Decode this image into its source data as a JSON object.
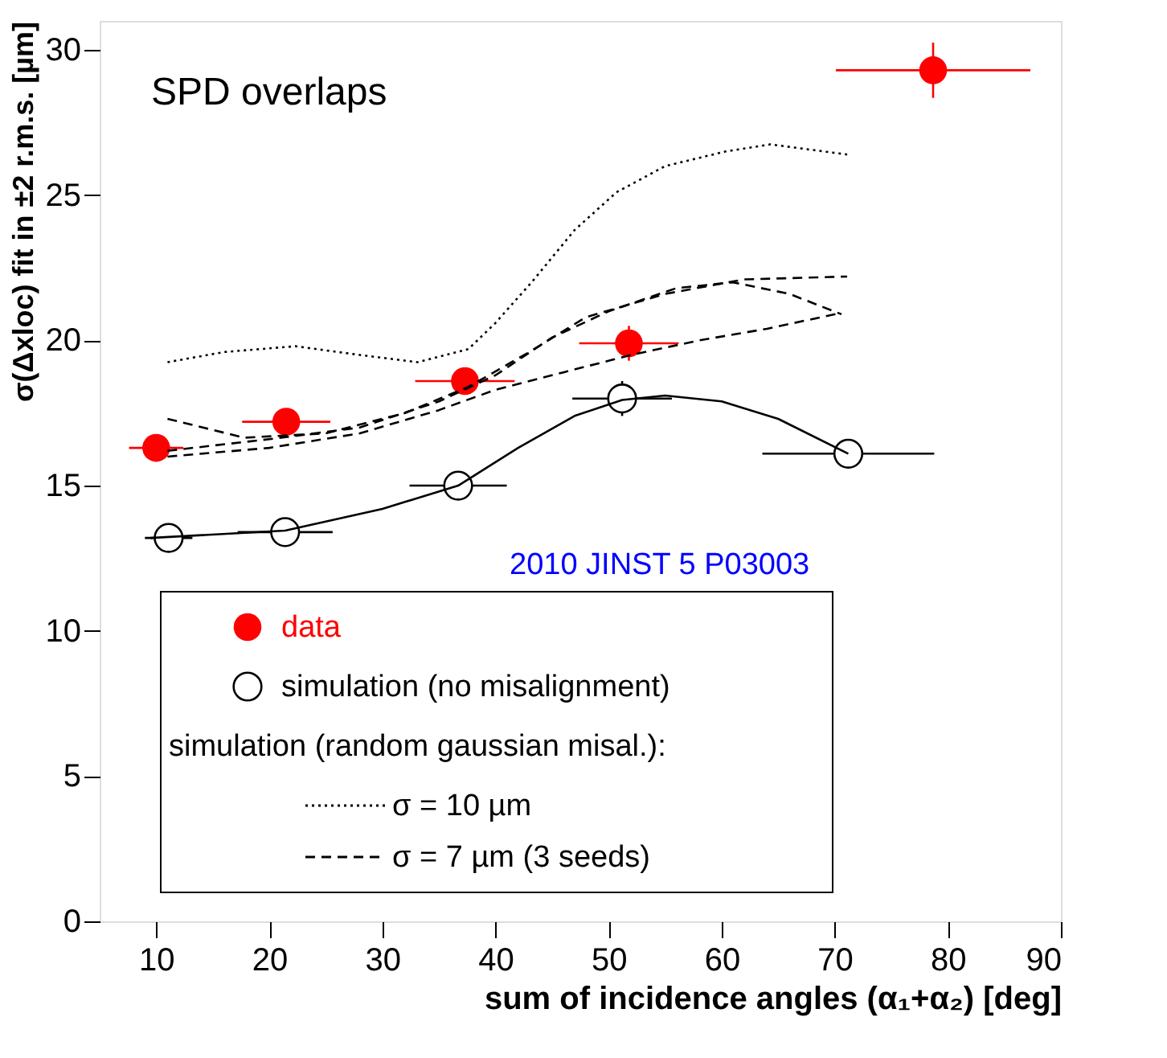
{
  "chart_data": {
    "type": "scatter",
    "title": "SPD overlaps",
    "xlabel": "sum of incidence angles (α₁+α₂)  [deg]",
    "ylabel": "σ(Δxloc) fit in ±2 r.m.s. [µm]",
    "legend_title": "simulation (random gaussian misal.):",
    "annotations": [
      "2010 JINST 5 P03003"
    ],
    "xlim": [
      5,
      90
    ],
    "xticks": [
      10,
      20,
      30,
      40,
      50,
      60,
      70,
      80,
      90
    ],
    "ylim": [
      0,
      31
    ],
    "yticks": [
      0,
      5,
      10,
      15,
      20,
      25,
      30
    ],
    "grid": false,
    "legend": "bottom left",
    "series": [
      {
        "name": "data",
        "marker": "circle",
        "color": "#ff0000",
        "x": [
          10.0,
          21.5,
          37.3,
          51.8,
          78.7
        ],
        "values": [
          16.3,
          17.2,
          18.6,
          19.9,
          29.3
        ],
        "errors": [
          null,
          null,
          null,
          0.6,
          0.95
        ],
        "xerrors": [
          2.4,
          3.9,
          4.4,
          4.4,
          8.6
        ]
      },
      {
        "name": "simulation (no misalignment)",
        "marker": "circle",
        "color": "#000000",
        "x": [
          11.1,
          21.4,
          36.7,
          51.2,
          71.2
        ],
        "values": [
          13.2,
          13.4,
          15.0,
          18.0,
          16.1
        ],
        "errors": [
          null,
          null,
          null,
          0.6,
          0.5
        ],
        "xerrors": [
          2.1,
          4.2,
          4.3,
          4.4,
          7.6
        ]
      },
      {
        "type": "line",
        "line_style": "solid",
        "color": "#000000",
        "x": [
          9.5,
          21.4,
          30,
          36.7,
          42,
          47,
          51.2,
          55,
          60,
          65,
          71.2
        ],
        "values": [
          13.2,
          13.45,
          14.2,
          15.0,
          16.3,
          17.4,
          17.95,
          18.1,
          17.9,
          17.3,
          16.1
        ]
      },
      {
        "name": "σ = 10 µm",
        "type": "line",
        "line_style": "dotted",
        "color": "#000000",
        "x": [
          11.0,
          16,
          22.3,
          28,
          33.1,
          37.6,
          40,
          43.3,
          47,
          50.7,
          55,
          60.3,
          64.3,
          71.1
        ],
        "values": [
          19.25,
          19.6,
          19.8,
          19.5,
          19.25,
          19.7,
          20.6,
          22.05,
          23.8,
          25.1,
          26.0,
          26.5,
          26.75,
          26.4
        ]
      },
      {
        "name": "σ = 7 µm (3 seeds)",
        "type": "line",
        "line_style": "dashed",
        "color": "#000000",
        "x": [
          11,
          17.8,
          25,
          32,
          37.6,
          43,
          48,
          55,
          62,
          71.1
        ],
        "values": [
          17.3,
          16.65,
          16.8,
          17.5,
          18.4,
          19.6,
          20.8,
          21.6,
          22.1,
          22.2
        ]
      },
      {
        "type": "line",
        "line_style": "dashed",
        "color": "#000000",
        "x": [
          11,
          20,
          28,
          35,
          40,
          45,
          50,
          56,
          61,
          66,
          70.6
        ],
        "values": [
          16.2,
          16.6,
          17.0,
          17.9,
          18.8,
          20.1,
          21.0,
          21.8,
          22.0,
          21.6,
          20.9
        ]
      },
      {
        "type": "line",
        "line_style": "dashed",
        "color": "#000000",
        "x": [
          11,
          20,
          28,
          35,
          40,
          46,
          52,
          58,
          64,
          70.6
        ],
        "values": [
          16.0,
          16.3,
          16.8,
          17.6,
          18.3,
          18.9,
          19.5,
          20.0,
          20.4,
          20.95
        ]
      }
    ]
  }
}
